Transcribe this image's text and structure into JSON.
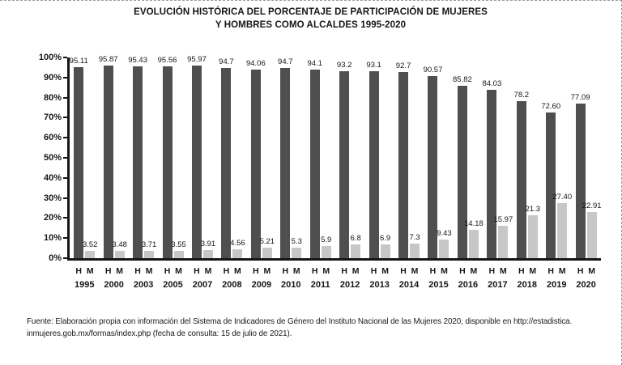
{
  "title": {
    "line1": "EVOLUCIÓN HISTÓRICA DEL PORCENTAJE DE PARTICIPACIÓN DE MUJERES",
    "line2": "Y HOMBRES COMO ALCALDES 1995-2020"
  },
  "chart_data": {
    "type": "bar",
    "title": "EVOLUCIÓN HISTÓRICA DEL PORCENTAJE DE PARTICIPACIÓN DE MUJERES Y HOMBRES COMO ALCALDES 1995-2020",
    "categories": [
      "1995",
      "2000",
      "2003",
      "2005",
      "2007",
      "2008",
      "2009",
      "2010",
      "2011",
      "2012",
      "2013",
      "2014",
      "2015",
      "2016",
      "2017",
      "2018",
      "2019",
      "2020"
    ],
    "series": [
      {
        "name": "H",
        "color": "#4f4f4f",
        "values": [
          95.11,
          95.87,
          95.43,
          95.56,
          95.97,
          94.7,
          94.06,
          94.7,
          94.1,
          93.2,
          93.1,
          92.7,
          90.57,
          85.82,
          84.03,
          78.2,
          72.6,
          77.09
        ],
        "labels": [
          "95.11",
          "95.87",
          "95.43",
          "95.56",
          "95.97",
          "94.7",
          "94.06",
          "94.7",
          "94.1",
          "93.2",
          "93.1",
          "92.7",
          "90.57",
          "85.82",
          "84.03",
          "78.2",
          "72.60",
          "77.09"
        ]
      },
      {
        "name": "M",
        "color": "#c7c7c7",
        "values": [
          3.52,
          3.48,
          3.71,
          3.55,
          3.91,
          4.56,
          5.21,
          5.3,
          5.9,
          6.8,
          6.9,
          7.3,
          9.43,
          14.18,
          15.97,
          21.3,
          27.4,
          22.91
        ],
        "labels": [
          "3.52",
          "3.48",
          "3.71",
          "3.55",
          "3.91",
          "4.56",
          "5.21",
          "5.3",
          "5.9",
          "6.8",
          "6.9",
          "7.3",
          "9.43",
          "14.18",
          "15.97",
          "21.3",
          "27.40",
          "22.91"
        ]
      }
    ],
    "xlabel": "",
    "ylabel": "",
    "ylim": [
      0,
      100
    ],
    "yticks": [
      "0%",
      "10%",
      "20%",
      "30%",
      "40%",
      "50%",
      "60%",
      "70%",
      "80%",
      "90%",
      "100%"
    ],
    "grid": false,
    "legend_position": "per-group letters below x-axis"
  },
  "footer": {
    "line1": "Fuente: Elaboración propia con información del Sistema de Indicadores de Género del Instituto Nacional de las Mujeres 2020, disponible en http://estadistica.",
    "line2": "inmujeres.gob.mx/formas/index.php (fecha de consulta: 15 de julio de 2021)."
  }
}
